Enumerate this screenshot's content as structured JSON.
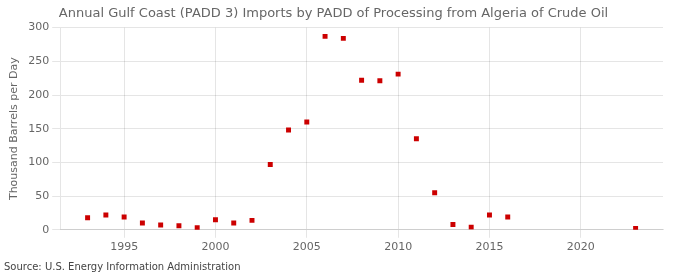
{
  "chart_data": {
    "type": "scatter",
    "title": "Annual Gulf Coast (PADD 3) Imports by PADD of Processing from Algeria of Crude Oil",
    "y_label": "Thousand Barrels per Day",
    "annotations": [
      "Source: U.S. Energy Information Administration"
    ],
    "x": [
      1993,
      1994,
      1995,
      1996,
      1997,
      1998,
      1999,
      2000,
      2001,
      2002,
      2003,
      2004,
      2005,
      2006,
      2007,
      2008,
      2009,
      2010,
      2011,
      2012,
      2013,
      2014,
      2015,
      2016,
      2023
    ],
    "values": [
      18,
      22,
      19,
      10,
      7,
      6,
      3,
      15,
      10,
      14,
      97,
      148,
      160,
      287,
      284,
      222,
      221,
      231,
      135,
      55,
      8,
      4,
      22,
      19,
      2
    ],
    "color": "#cc0000",
    "marker": "square",
    "xlim": [
      1991.5,
      2024.5
    ],
    "xticks": [
      1995,
      2000,
      2005,
      2010,
      2015,
      2020
    ],
    "ylim": [
      0,
      300
    ],
    "yticks": [
      0,
      50,
      100,
      150,
      200,
      250,
      300
    ],
    "grid": true
  }
}
